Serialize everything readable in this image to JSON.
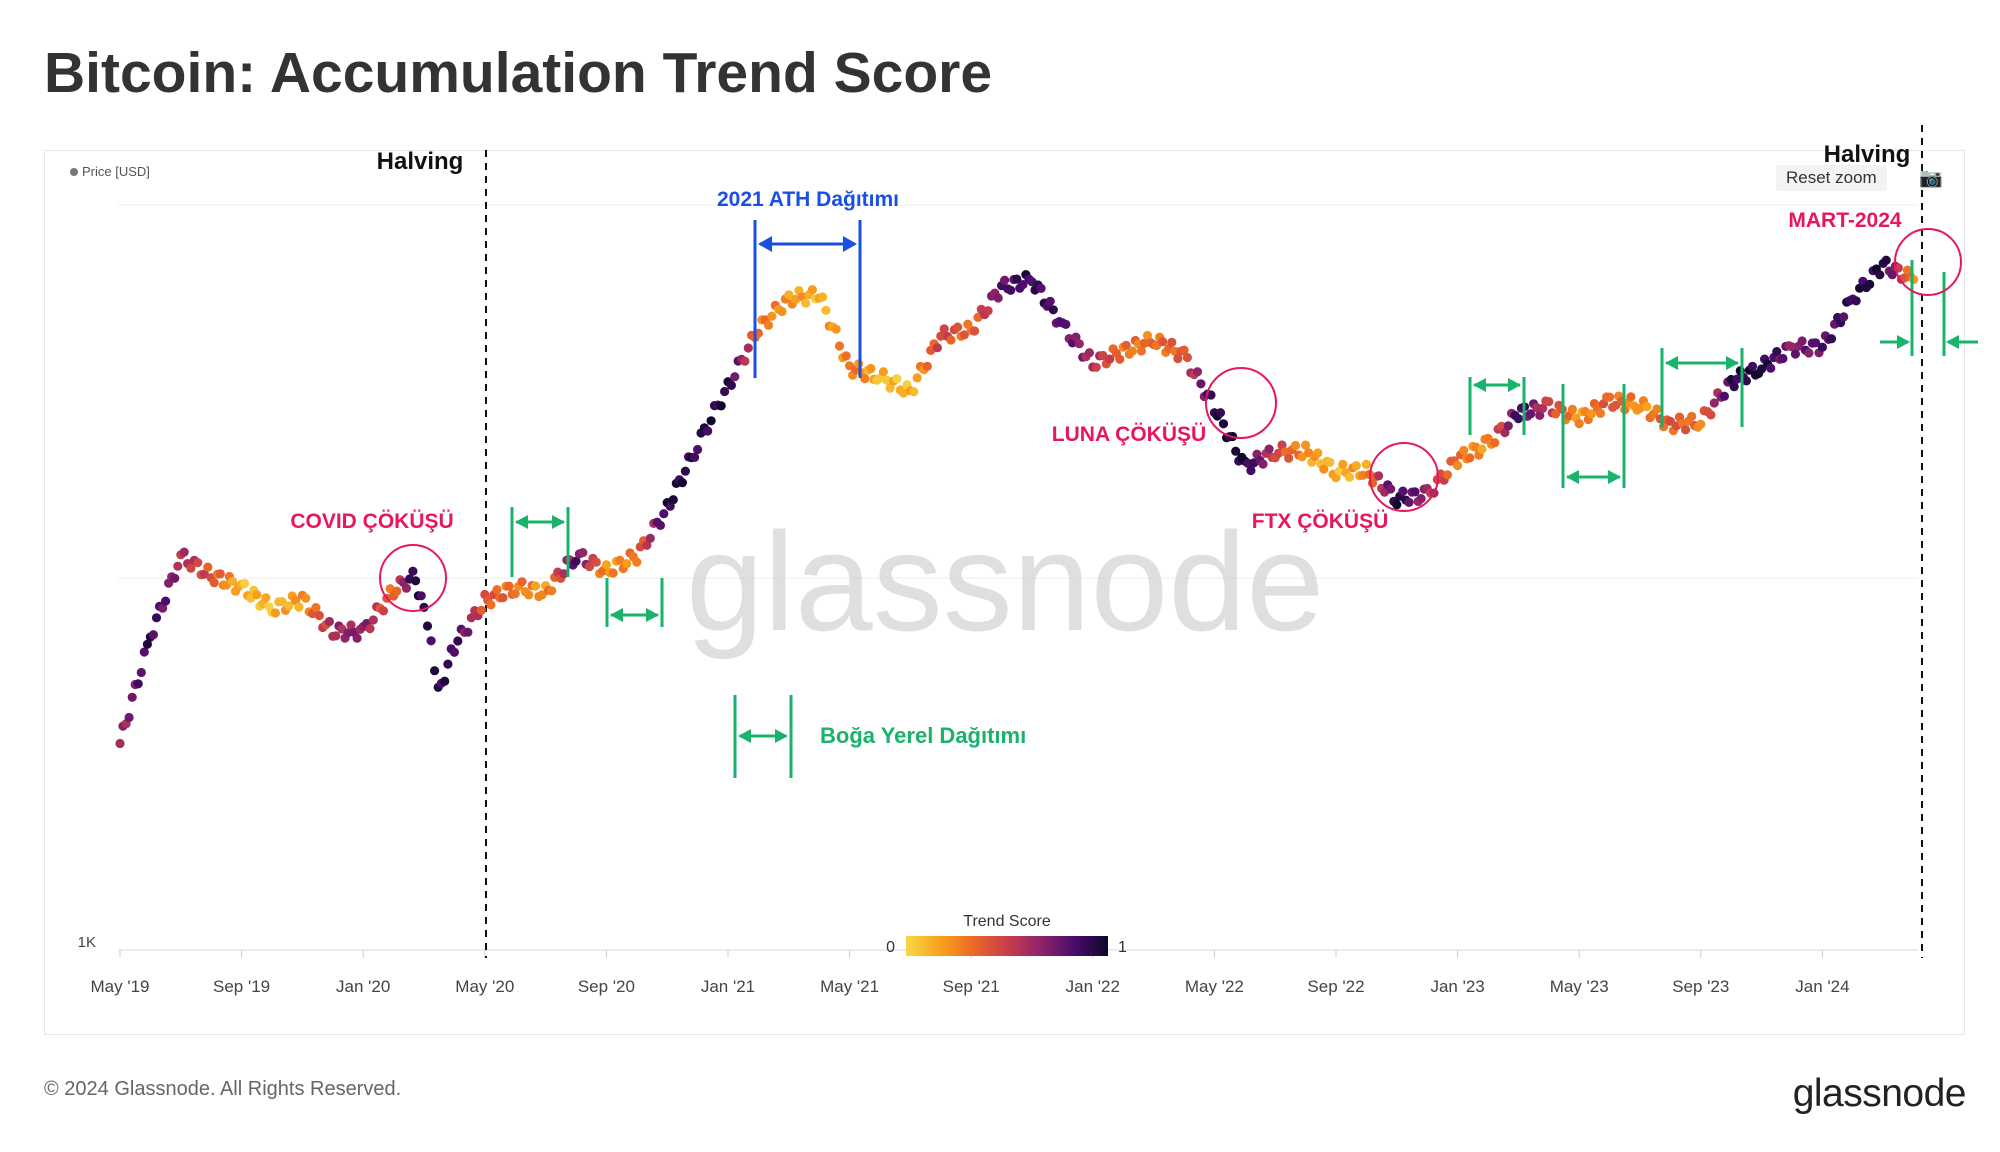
{
  "title": "Bitcoin: Accumulation Trend Score",
  "footer": {
    "copyright": "© 2024 Glassnode. All Rights Reserved.",
    "logo": "glassnode"
  },
  "watermark": "glassnode",
  "controls": {
    "reset_zoom": "Reset zoom",
    "camera_icon": "camera-icon"
  },
  "legend": {
    "price_label": "Price [USD]"
  },
  "colorbar": {
    "title": "Trend Score",
    "min_label": "0",
    "max_label": "1",
    "colors": [
      "#f6d746",
      "#f8a11d",
      "#ed6925",
      "#c73e4c",
      "#8c2369",
      "#4a0c6b",
      "#0d0829"
    ]
  },
  "colors": {
    "halving": "#111111",
    "ath": "#1a4fe6",
    "bull": "#19b36b",
    "crash": "#e8175d",
    "grid": "#ececec"
  },
  "chart_data": {
    "type": "scatter",
    "title": "Bitcoin: Accumulation Trend Score",
    "y_tick_label": "1K",
    "x_ticks": [
      "May '19",
      "Sep '19",
      "Jan '20",
      "May '20",
      "Sep '20",
      "Jan '21",
      "May '21",
      "Sep '21",
      "Jan '22",
      "May '22",
      "Sep '22",
      "Jan '23",
      "May '23",
      "Sep '23",
      "Jan '24"
    ],
    "x_range": [
      "2019-05",
      "2024-04"
    ],
    "grid": true,
    "color_encoding": "Trend Score",
    "series": [
      {
        "x": "2019-05",
        "y": 3600,
        "s": 0.6
      },
      {
        "x": "2019-06",
        "y": 7000,
        "s": 0.9
      },
      {
        "x": "2019-07",
        "y": 11500,
        "s": 0.6
      },
      {
        "x": "2019-08",
        "y": 10200,
        "s": 0.4
      },
      {
        "x": "2019-09",
        "y": 9500,
        "s": 0.1
      },
      {
        "x": "2019-10",
        "y": 8300,
        "s": 0.1
      },
      {
        "x": "2019-11",
        "y": 8800,
        "s": 0.2
      },
      {
        "x": "2019-12",
        "y": 7200,
        "s": 0.6
      },
      {
        "x": "2020-01",
        "y": 7200,
        "s": 0.7
      },
      {
        "x": "2020-02",
        "y": 9300,
        "s": 0.3
      },
      {
        "x": "2020-02-20",
        "y": 10100,
        "s": 0.95
      },
      {
        "x": "2020-03",
        "y": 8700,
        "s": 0.9
      },
      {
        "x": "2020-03-15",
        "y": 4900,
        "s": 0.9
      },
      {
        "x": "2020-04",
        "y": 6600,
        "s": 0.9
      },
      {
        "x": "2020-05",
        "y": 8700,
        "s": 0.4
      },
      {
        "x": "2020-06",
        "y": 9500,
        "s": 0.3
      },
      {
        "x": "2020-07",
        "y": 9200,
        "s": 0.2
      },
      {
        "x": "2020-08",
        "y": 11600,
        "s": 0.8
      },
      {
        "x": "2020-09",
        "y": 10500,
        "s": 0.2
      },
      {
        "x": "2020-10",
        "y": 11500,
        "s": 0.3
      },
      {
        "x": "2020-11",
        "y": 15500,
        "s": 0.95
      },
      {
        "x": "2020-12",
        "y": 23000,
        "s": 0.9
      },
      {
        "x": "2021-01",
        "y": 33000,
        "s": 0.95
      },
      {
        "x": "2021-02",
        "y": 47000,
        "s": 0.3
      },
      {
        "x": "2021-03",
        "y": 57000,
        "s": 0.2
      },
      {
        "x": "2021-04",
        "y": 58000,
        "s": 0.1
      },
      {
        "x": "2021-05",
        "y": 37000,
        "s": 0.3
      },
      {
        "x": "2021-06",
        "y": 35000,
        "s": 0.1
      },
      {
        "x": "2021-07",
        "y": 32000,
        "s": 0.1
      },
      {
        "x": "2021-08",
        "y": 45000,
        "s": 0.5
      },
      {
        "x": "2021-09",
        "y": 47000,
        "s": 0.3
      },
      {
        "x": "2021-10",
        "y": 61000,
        "s": 0.8
      },
      {
        "x": "2021-11",
        "y": 64000,
        "s": 0.9
      },
      {
        "x": "2021-12",
        "y": 48000,
        "s": 0.8
      },
      {
        "x": "2022-01",
        "y": 38000,
        "s": 0.6
      },
      {
        "x": "2022-02",
        "y": 41000,
        "s": 0.3
      },
      {
        "x": "2022-03",
        "y": 44000,
        "s": 0.3
      },
      {
        "x": "2022-04",
        "y": 40000,
        "s": 0.4
      },
      {
        "x": "2022-05",
        "y": 29000,
        "s": 0.95
      },
      {
        "x": "2022-06",
        "y": 20000,
        "s": 0.95
      },
      {
        "x": "2022-07",
        "y": 22000,
        "s": 0.5
      },
      {
        "x": "2022-08",
        "y": 22000,
        "s": 0.2
      },
      {
        "x": "2022-09",
        "y": 19500,
        "s": 0.1
      },
      {
        "x": "2022-10",
        "y": 19500,
        "s": 0.2
      },
      {
        "x": "2022-11",
        "y": 16500,
        "s": 0.95
      },
      {
        "x": "2022-12",
        "y": 16800,
        "s": 0.6
      },
      {
        "x": "2023-01",
        "y": 21000,
        "s": 0.3
      },
      {
        "x": "2023-02",
        "y": 23000,
        "s": 0.2
      },
      {
        "x": "2023-03",
        "y": 28000,
        "s": 0.9
      },
      {
        "x": "2023-04",
        "y": 29000,
        "s": 0.5
      },
      {
        "x": "2023-05",
        "y": 27000,
        "s": 0.2
      },
      {
        "x": "2023-06",
        "y": 30000,
        "s": 0.4
      },
      {
        "x": "2023-07",
        "y": 29500,
        "s": 0.2
      },
      {
        "x": "2023-08",
        "y": 26000,
        "s": 0.4
      },
      {
        "x": "2023-09",
        "y": 26500,
        "s": 0.3
      },
      {
        "x": "2023-10",
        "y": 34000,
        "s": 0.9
      },
      {
        "x": "2023-11",
        "y": 37000,
        "s": 0.95
      },
      {
        "x": "2023-12",
        "y": 42000,
        "s": 0.7
      },
      {
        "x": "2024-01",
        "y": 42000,
        "s": 0.8
      },
      {
        "x": "2024-02",
        "y": 57000,
        "s": 0.9
      },
      {
        "x": "2024-03",
        "y": 70000,
        "s": 0.95
      },
      {
        "x": "2024-04",
        "y": 64000,
        "s": 0.2
      }
    ]
  },
  "annotations": {
    "halving_1": "Halving",
    "halving_2": "Halving",
    "ath": "2021 ATH Dağıtımı",
    "covid": "COVID ÇÖKÜŞÜ",
    "luna": "LUNA ÇÖKÜŞÜ",
    "ftx": "FTX ÇÖKÜŞÜ",
    "mart": "MART-2024",
    "bull_legend": "Boğa Yerel Dağıtımı"
  }
}
